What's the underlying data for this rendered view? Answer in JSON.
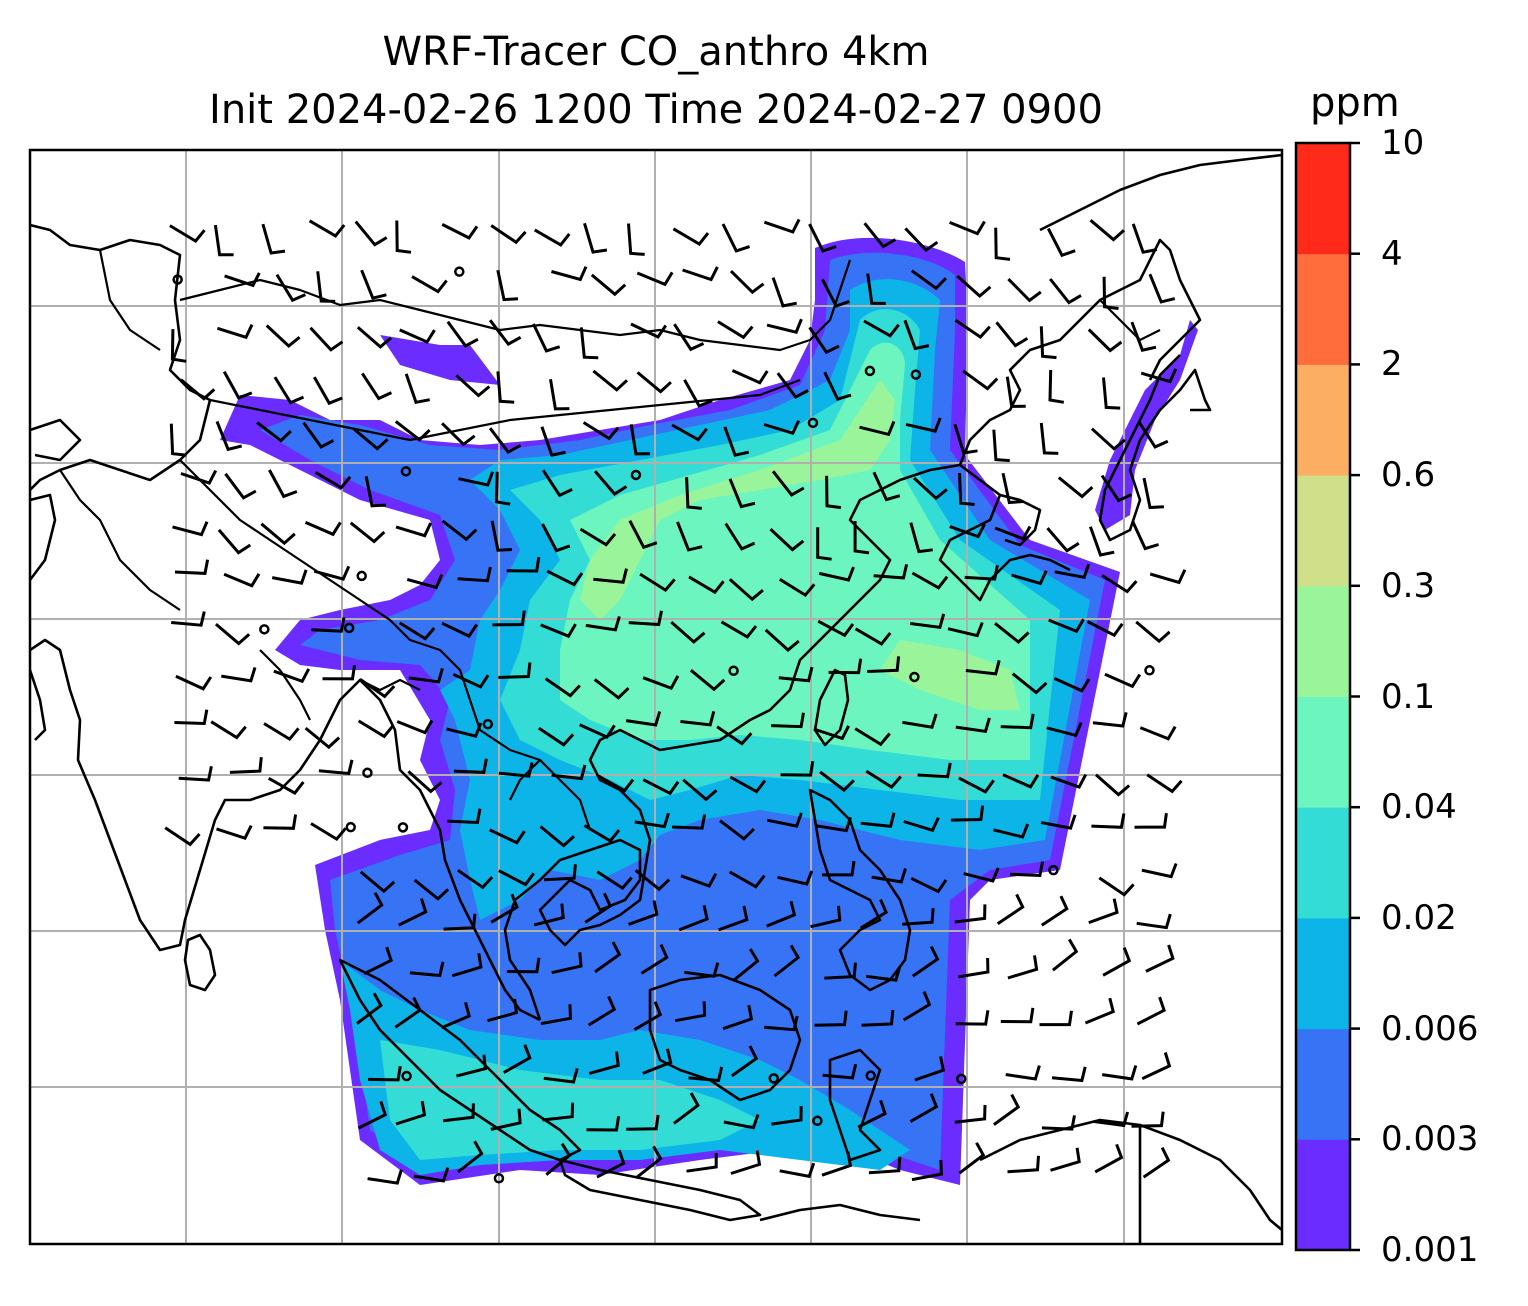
{
  "title": {
    "line1": "WRF-Tracer CO_anthro 4km",
    "line2": "Init 2024-02-26 1200 Time 2024-02-27 0900"
  },
  "colorbar": {
    "label": "ppm",
    "ticks": [
      "0.001",
      "0.003",
      "0.006",
      "0.02",
      "0.04",
      "0.1",
      "0.3",
      "0.6",
      "2",
      "4",
      "10"
    ],
    "colors": [
      "#6a2cff",
      "#3673f5",
      "#0db4e8",
      "#33dcd4",
      "#6df5c0",
      "#9af59a",
      "#d0e08a",
      "#fcae62",
      "#ff6d3c",
      "#ff2a1a"
    ]
  },
  "map": {
    "gridlines": true,
    "barb_color": "#000000",
    "coast_color": "#000000"
  }
}
